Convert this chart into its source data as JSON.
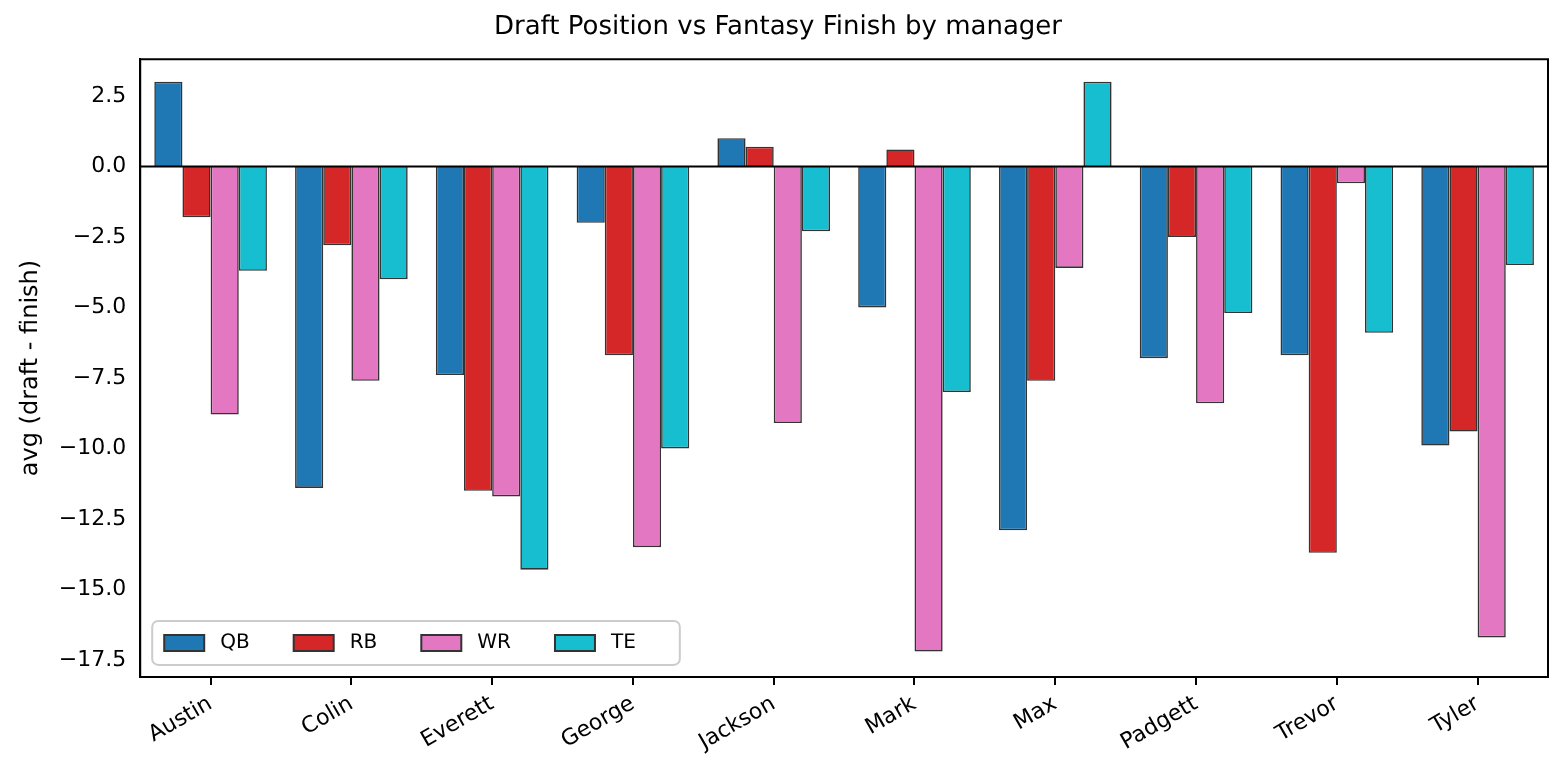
{
  "chart_data": {
    "type": "bar",
    "title": "Draft Position vs Fantasy Finish by manager",
    "ylabel": "avg (draft - finish)",
    "categories": [
      "Austin",
      "Colin",
      "Everett",
      "George",
      "Jackson",
      "Mark",
      "Max",
      "Padgett",
      "Trevor",
      "Tyler"
    ],
    "series": [
      {
        "name": "QB",
        "color": "#1f77b4",
        "values": [
          3.0,
          -11.4,
          -7.4,
          -2.0,
          1.0,
          -5.0,
          -12.9,
          -6.8,
          -6.7,
          -9.9
        ]
      },
      {
        "name": "RB",
        "color": "#d62728",
        "values": [
          -1.8,
          -2.8,
          -11.5,
          -6.7,
          0.7,
          0.6,
          -7.6,
          -2.5,
          -13.7,
          -9.4
        ]
      },
      {
        "name": "WR",
        "color": "#e377c2",
        "values": [
          -8.8,
          -7.6,
          -11.7,
          -13.5,
          -9.1,
          -17.2,
          -3.6,
          -8.4,
          -0.6,
          -16.7
        ]
      },
      {
        "name": "TE",
        "color": "#17becf",
        "values": [
          -3.7,
          -4.0,
          -14.3,
          -10.0,
          -2.3,
          -8.0,
          3.0,
          -5.2,
          -5.9,
          -3.5
        ]
      }
    ],
    "ylim": [
      -18.1,
      3.8
    ],
    "yticks": [
      {
        "value": -17.5,
        "label": "−17.5"
      },
      {
        "value": -15,
        "label": "−15.0"
      },
      {
        "value": -12.5,
        "label": "−12.5"
      },
      {
        "value": -10,
        "label": "−10.0"
      },
      {
        "value": -7.5,
        "label": "−7.5"
      },
      {
        "value": -5,
        "label": "−5.0"
      },
      {
        "value": -2.5,
        "label": "−2.5"
      },
      {
        "value": 0,
        "label": "0.0"
      },
      {
        "value": 2.5,
        "label": "2.5"
      }
    ],
    "ref_lines": [
      {
        "axis": "y",
        "value": 0,
        "color": "#000000"
      }
    ],
    "grid": false,
    "legend": "bottom left"
  }
}
